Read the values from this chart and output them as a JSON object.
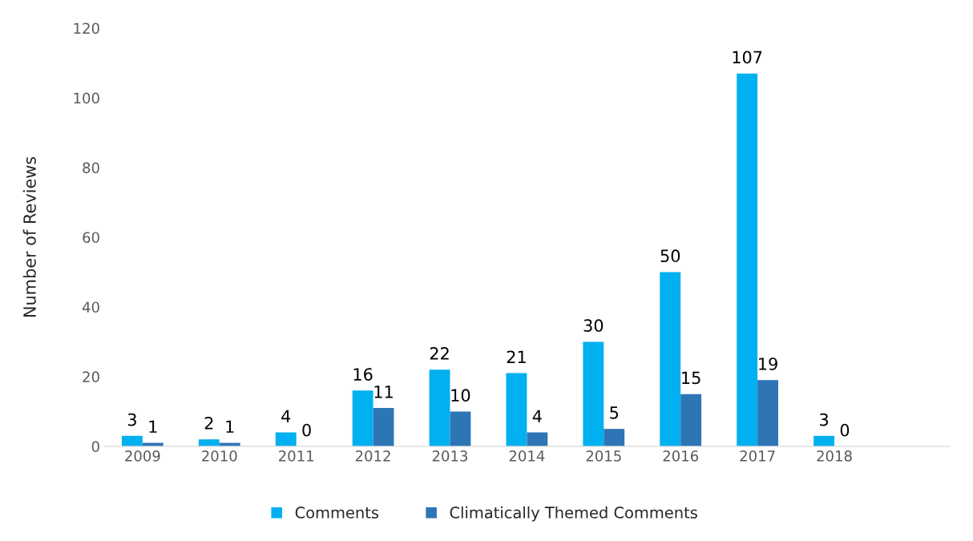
{
  "chart_data": {
    "type": "bar",
    "ylabel": "Number of Reviews",
    "categories": [
      "2009",
      "2010",
      "2011",
      "2012",
      "2013",
      "2014",
      "2015",
      "2016",
      "2017",
      "2018",
      null
    ],
    "series": [
      {
        "name": "Comments",
        "color": "#00b0f0",
        "values": [
          3,
          2,
          4,
          16,
          22,
          21,
          30,
          50,
          107,
          3,
          null
        ]
      },
      {
        "name": "Climatically Themed Comments",
        "color": "#2e75b6",
        "values": [
          1,
          1,
          0,
          11,
          10,
          4,
          5,
          15,
          19,
          0,
          null
        ]
      }
    ],
    "ylim": [
      0,
      120
    ],
    "yticks": [
      0,
      20,
      40,
      60,
      80,
      100,
      120
    ],
    "grid": false,
    "legend": "bottom",
    "data_labels": true
  }
}
